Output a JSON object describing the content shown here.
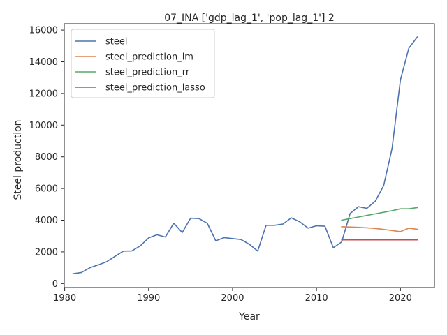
{
  "chart_data": {
    "type": "line",
    "title": "07_INA ['gdp_lag_1', 'pop_lag_1'] 2",
    "xlabel": "Year",
    "ylabel": "Steel production",
    "xlim": [
      1979.95,
      2024.05
    ],
    "ylim": [
      -250,
      16400
    ],
    "xticks": [
      1980,
      1990,
      2000,
      2010,
      2020
    ],
    "yticks": [
      0,
      2000,
      4000,
      6000,
      8000,
      10000,
      12000,
      14000,
      16000
    ],
    "grid": false,
    "legend_position": "top-left",
    "series": [
      {
        "name": "steel",
        "color": "#4c72b0",
        "x": [
          1981,
          1982,
          1983,
          1984,
          1985,
          1986,
          1987,
          1988,
          1989,
          1990,
          1991,
          1992,
          1993,
          1994,
          1995,
          1996,
          1997,
          1998,
          1999,
          2000,
          2001,
          2002,
          2003,
          2004,
          2005,
          2006,
          2007,
          2008,
          2009,
          2010,
          2011,
          2012,
          2013,
          2014,
          2015,
          2016,
          2017,
          2018,
          2019,
          2020,
          2021,
          2022
        ],
        "y": [
          620,
          700,
          1000,
          1180,
          1380,
          1720,
          2050,
          2060,
          2380,
          2880,
          3080,
          2940,
          3810,
          3220,
          4130,
          4100,
          3800,
          2700,
          2900,
          2840,
          2780,
          2480,
          2050,
          3680,
          3680,
          3760,
          4150,
          3900,
          3500,
          3650,
          3620,
          2260,
          2630,
          4420,
          4850,
          4750,
          5200,
          6180,
          8520,
          12850,
          14850,
          15560
        ]
      },
      {
        "name": "steel_prediction_lm",
        "color": "#dd8452",
        "x": [
          2013,
          2014,
          2015,
          2016,
          2017,
          2018,
          2019,
          2020,
          2021,
          2022
        ],
        "y": [
          3590,
          3570,
          3550,
          3520,
          3480,
          3420,
          3350,
          3280,
          3500,
          3430
        ]
      },
      {
        "name": "steel_prediction_rr",
        "color": "#55a868",
        "x": [
          2013,
          2014,
          2015,
          2016,
          2017,
          2018,
          2019,
          2020,
          2021,
          2022
        ],
        "y": [
          4000,
          4100,
          4200,
          4300,
          4400,
          4500,
          4600,
          4720,
          4720,
          4800
        ]
      },
      {
        "name": "steel_prediction_lasso",
        "color": "#c44e52",
        "x": [
          2013,
          2014,
          2015,
          2016,
          2017,
          2018,
          2019,
          2020,
          2021,
          2022
        ],
        "y": [
          2760,
          2760,
          2760,
          2760,
          2760,
          2760,
          2760,
          2760,
          2760,
          2760
        ]
      }
    ]
  }
}
